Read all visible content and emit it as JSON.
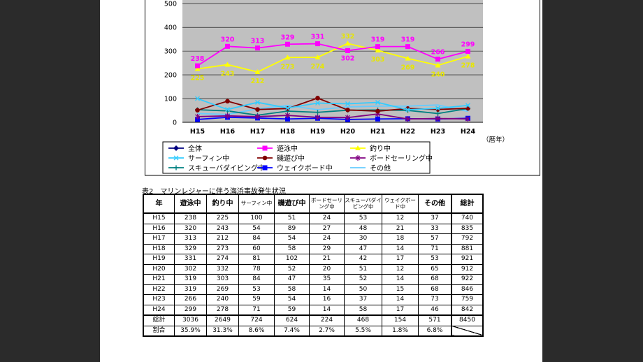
{
  "chart_data": {
    "type": "line",
    "x": [
      "H15",
      "H16",
      "H17",
      "H18",
      "H19",
      "H20",
      "H21",
      "H22",
      "H23",
      "H24"
    ],
    "xunit": "（暦年）",
    "yticks": [
      0,
      100,
      200,
      300,
      400,
      500
    ],
    "ylim": [
      0,
      530
    ],
    "grid": true,
    "legend_placement": "bottom",
    "series": [
      {
        "name": "全体",
        "color": "#000080",
        "marker": "diamond",
        "values": [
          null,
          null,
          null,
          null,
          null,
          null,
          null,
          null,
          null,
          null
        ]
      },
      {
        "name": "遊泳中",
        "color": "#ff00ff",
        "marker": "square",
        "labels": true,
        "values": [
          238,
          320,
          313,
          329,
          331,
          302,
          319,
          319,
          266,
          299
        ]
      },
      {
        "name": "釣り中",
        "color": "#ffff00",
        "marker": "triangle",
        "labels": true,
        "values": [
          225,
          243,
          212,
          273,
          274,
          332,
          303,
          269,
          240,
          278
        ]
      },
      {
        "name": "サーフィン中",
        "color": "#33ccff",
        "marker": "x",
        "values": [
          100,
          54,
          84,
          60,
          81,
          78,
          84,
          53,
          59,
          71
        ]
      },
      {
        "name": "磯遊び中",
        "color": "#800000",
        "marker": "circle",
        "values": [
          51,
          89,
          54,
          58,
          102,
          52,
          47,
          58,
          54,
          59
        ]
      },
      {
        "name": "ボードセーリング中",
        "color": "#800080",
        "marker": "star",
        "values": [
          24,
          27,
          24,
          29,
          21,
          20,
          35,
          14,
          16,
          14
        ]
      },
      {
        "name": "スキューバダイビング中",
        "color": "#008080",
        "marker": "plus",
        "values": [
          53,
          48,
          30,
          47,
          42,
          51,
          52,
          50,
          37,
          58
        ]
      },
      {
        "name": "ウェイクボード中",
        "color": "#0000ff",
        "marker": "square",
        "values": [
          12,
          21,
          18,
          14,
          17,
          12,
          14,
          15,
          14,
          17
        ]
      },
      {
        "name": "その他",
        "color": "#66ccff",
        "marker": "none",
        "values": [
          37,
          33,
          57,
          71,
          53,
          65,
          68,
          68,
          73,
          46
        ]
      }
    ]
  },
  "table": {
    "caption": "表2　マリンレジャーに伴う海浜事故発生状況",
    "headers": [
      "年",
      "遊泳中",
      "釣り中",
      "サーフィン中",
      "磯遊び中",
      "ボードセーリング中",
      "スキューバダイビング中",
      "ウェイクボード中",
      "その他",
      "総計"
    ],
    "rows": [
      [
        "H15",
        "238",
        "225",
        "100",
        "51",
        "24",
        "53",
        "12",
        "37",
        "740"
      ],
      [
        "H16",
        "320",
        "243",
        "54",
        "89",
        "27",
        "48",
        "21",
        "33",
        "835"
      ],
      [
        "H17",
        "313",
        "212",
        "84",
        "54",
        "24",
        "30",
        "18",
        "57",
        "792"
      ],
      [
        "H18",
        "329",
        "273",
        "60",
        "58",
        "29",
        "47",
        "14",
        "71",
        "881"
      ],
      [
        "H19",
        "331",
        "274",
        "81",
        "102",
        "21",
        "42",
        "17",
        "53",
        "921"
      ],
      [
        "H20",
        "302",
        "332",
        "78",
        "52",
        "20",
        "51",
        "12",
        "65",
        "912"
      ],
      [
        "H21",
        "319",
        "303",
        "84",
        "47",
        "35",
        "52",
        "14",
        "68",
        "922"
      ],
      [
        "H22",
        "319",
        "269",
        "53",
        "58",
        "14",
        "50",
        "15",
        "68",
        "846"
      ],
      [
        "H23",
        "266",
        "240",
        "59",
        "54",
        "16",
        "37",
        "14",
        "73",
        "759"
      ],
      [
        "H24",
        "299",
        "278",
        "71",
        "59",
        "14",
        "58",
        "17",
        "46",
        "842"
      ]
    ],
    "total": [
      "総計",
      "3036",
      "2649",
      "724",
      "624",
      "224",
      "468",
      "154",
      "571",
      "8450"
    ],
    "ratio": [
      "割合",
      "35.9%",
      "31.3%",
      "8.6%",
      "7.4%",
      "2.7%",
      "5.5%",
      "1.8%",
      "6.8%",
      ""
    ]
  }
}
